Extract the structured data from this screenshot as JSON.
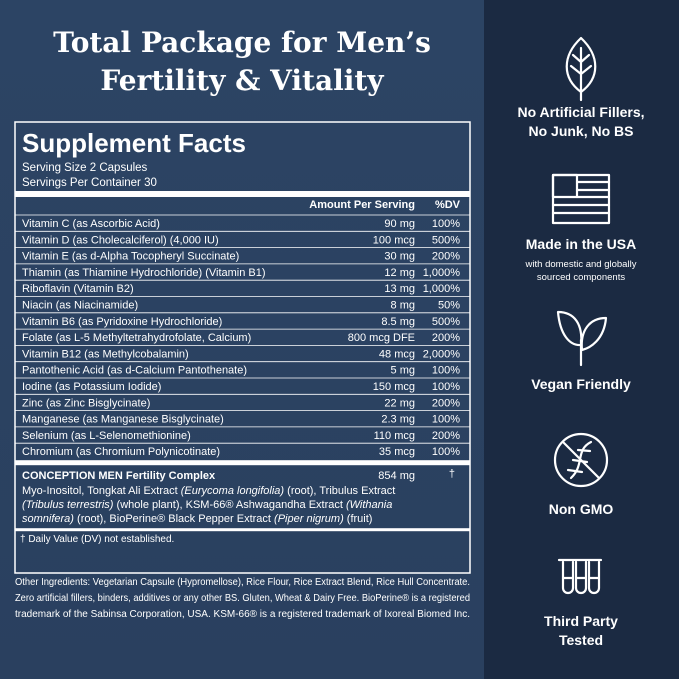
{
  "header": {
    "title_lines": [
      "Total Package for Men’s",
      "Fertility & Vitality"
    ]
  },
  "facts": {
    "title": "Supplement Facts",
    "serving_size": "Serving Size 2 Capsules",
    "servings": "Servings Per Container 30",
    "columns": [
      "Amount Per Serving",
      "%DV"
    ],
    "rows": [
      [
        "Vitamin C (as Ascorbic Acid)",
        "90 mg",
        "100%"
      ],
      [
        "Vitamin D (as Cholecalciferol) (4,000 IU)",
        "100 mcg",
        "500%"
      ],
      [
        "Vitamin E (as d-Alpha Tocopheryl Succinate)",
        "30 mg",
        "200%"
      ],
      [
        "Thiamin (as Thiamine Hydrochloride) (Vitamin B1)",
        "12 mg",
        "1,000%"
      ],
      [
        "Riboflavin (Vitamin B2)",
        "13 mg",
        "1,000%"
      ],
      [
        "Niacin (as Niacinamide)",
        "8 mg",
        "50%"
      ],
      [
        "Vitamin B6 (as Pyridoxine Hydrochloride)",
        "8.5 mg",
        "500%"
      ],
      [
        "Folate (as L-5 Methyltetrahydrofolate, Calcium)",
        "800 mcg DFE",
        "200%"
      ],
      [
        "Vitamin B12 (as Methylcobalamin)",
        "48 mcg",
        "2,000%"
      ],
      [
        "Pantothenic Acid (as d-Calcium Pantothenate)",
        "5 mg",
        "100%"
      ],
      [
        "Iodine (as Potassium Iodide)",
        "150 mcg",
        "100%"
      ],
      [
        "Zinc (as Zinc Bisglycinate)",
        "22 mg",
        "200%"
      ],
      [
        "Manganese (as Manganese Bisglycinate)",
        "2.3 mg",
        "100%"
      ],
      [
        "Selenium (as L-Selenomethionine)",
        "110 mcg",
        "200%"
      ],
      [
        "Chromium (as Chromium Polynicotinate)",
        "35 mcg",
        "100%"
      ]
    ],
    "complex": {
      "name": "CONCEPTION MEN Fertility Complex",
      "amount": "854 mg",
      "dv": "†",
      "lines": [
        [
          {
            "text": "Myo-Inositol, Tongkat Ali Extract "
          },
          {
            "text": "(Eurycoma longifolia)",
            "italic": true
          },
          {
            "text": " (root), Tribulus Extract"
          }
        ],
        [
          {
            "text": "(Tribulus terrestris)",
            "italic": true
          },
          {
            "text": " (whole plant), KSM-66® Ashwagandha Extract "
          },
          {
            "text": "(Withania",
            "italic": true
          }
        ],
        [
          {
            "text": "somnifera)",
            "italic": true
          },
          {
            "text": " (root), BioPerine® Black Pepper Extract "
          },
          {
            "text": "(Piper nigrum)",
            "italic": true
          },
          {
            "text": " (fruit)"
          }
        ]
      ]
    },
    "footnote": "† Daily Value (DV) not established."
  },
  "other_ingredients": [
    "Other Ingredients: Vegetarian Capsule (Hypromellose), Rice Flour, Rice Extract Blend, Rice Hull Concentrate.",
    "Zero artificial fillers, binders, additives or any other BS. Gluten, Wheat & Dairy Free. BioPerine® is a registered",
    "trademark of the Sabinsa Corporation, USA. KSM-66® is a registered trademark of Ixoreal Biomed Inc."
  ],
  "features": [
    {
      "label": [
        "No Artificial Fillers,",
        "No Junk, No BS"
      ]
    },
    {
      "label": [
        "Made in the USA"
      ],
      "sublabel": [
        "with domestic and globally",
        "sourced components"
      ]
    },
    {
      "label": [
        "Vegan Friendly"
      ]
    },
    {
      "label": [
        "Non GMO"
      ]
    },
    {
      "label": [
        "Third Party",
        "Tested"
      ]
    }
  ]
}
